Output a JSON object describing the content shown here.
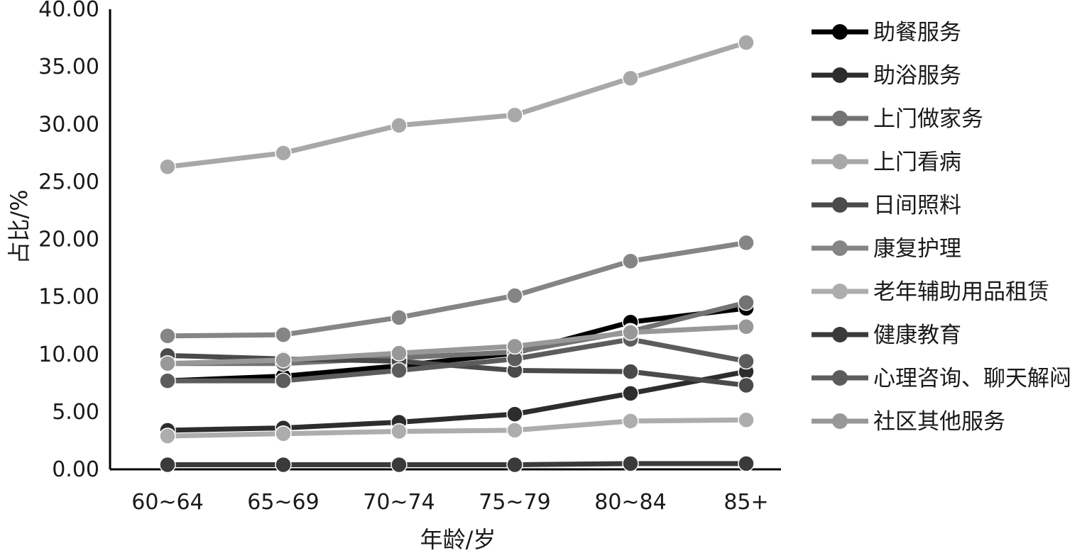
{
  "chart_data": {
    "type": "line",
    "xlabel": "年龄/岁",
    "ylabel": "占比/%",
    "categories": [
      "60~64",
      "65~69",
      "70~74",
      "75~79",
      "80~84",
      "85+"
    ],
    "ylim": [
      0,
      40
    ],
    "yticks": [
      "0.00",
      "5.00",
      "10.00",
      "15.00",
      "20.00",
      "25.00",
      "30.00",
      "35.00",
      "40.00"
    ],
    "grid": false,
    "legend_position": "right",
    "series": [
      {
        "name": "助餐服务",
        "color": "#000000",
        "values": [
          7.7,
          8.1,
          9.0,
          10.1,
          12.8,
          14.0
        ]
      },
      {
        "name": "助浴服务",
        "color": "#2d2d2d",
        "values": [
          3.4,
          3.6,
          4.1,
          4.8,
          6.6,
          8.5
        ]
      },
      {
        "name": "上门做家务",
        "color": "#737373",
        "values": [
          9.2,
          9.2,
          9.7,
          10.2,
          12.0,
          14.5
        ]
      },
      {
        "name": "上门看病",
        "color": "#a8a8a8",
        "values": [
          26.3,
          27.5,
          29.9,
          30.8,
          34.0,
          37.1
        ]
      },
      {
        "name": "日间照料",
        "color": "#4a4a4a",
        "values": [
          9.9,
          9.6,
          9.4,
          8.6,
          8.5,
          7.3
        ]
      },
      {
        "name": "康复护理",
        "color": "#858585",
        "values": [
          11.6,
          11.7,
          13.2,
          15.1,
          18.1,
          19.7
        ]
      },
      {
        "name": "老年辅助用品租赁",
        "color": "#adadad",
        "values": [
          2.9,
          3.1,
          3.3,
          3.4,
          4.2,
          4.3
        ]
      },
      {
        "name": "健康教育",
        "color": "#3a3a3a",
        "values": [
          0.4,
          0.4,
          0.4,
          0.4,
          0.5,
          0.5
        ]
      },
      {
        "name": "心理咨询、聊天解闷",
        "color": "#5c5c5c",
        "values": [
          7.7,
          7.7,
          8.6,
          9.6,
          11.3,
          9.4
        ]
      },
      {
        "name": "社区其他服务",
        "color": "#989898",
        "values": [
          9.2,
          9.5,
          10.1,
          10.7,
          11.9,
          12.4
        ]
      }
    ]
  }
}
